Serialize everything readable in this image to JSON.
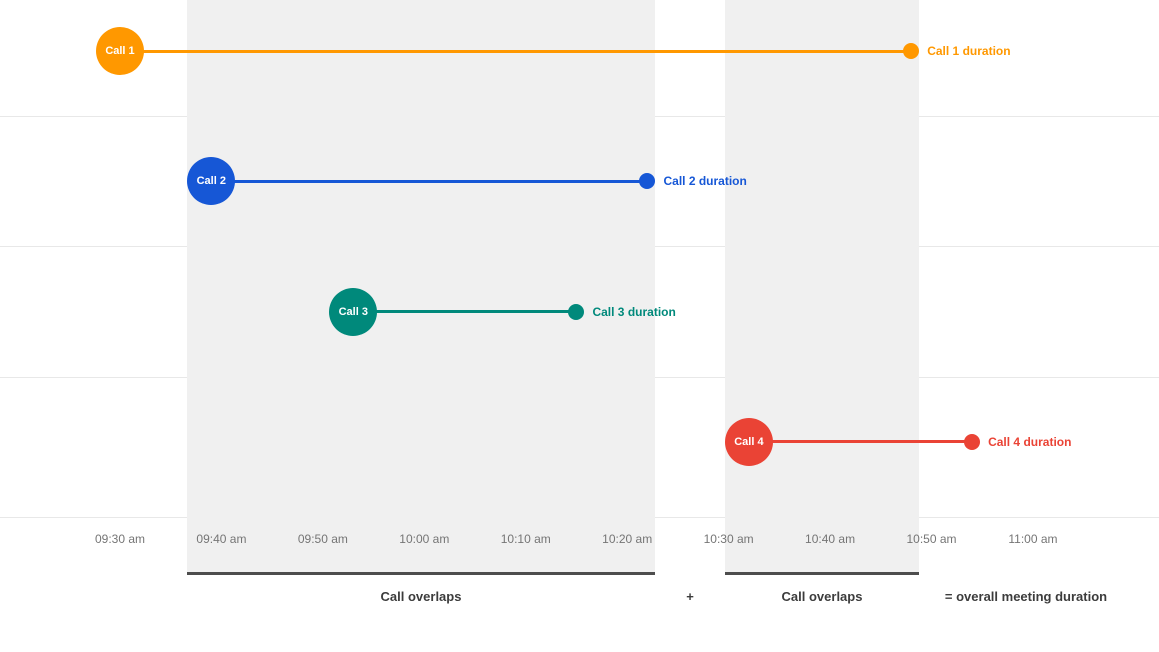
{
  "chart_data": {
    "type": "timeline",
    "title": "",
    "x_ticks": [
      "09:30 am",
      "09:40 am",
      "09:50 am",
      "10:00 am",
      "10:10 am",
      "10:20 am",
      "10:30 am",
      "10:40 am",
      "10:50 am",
      "11:00 am"
    ],
    "calls": [
      {
        "label": "Call 1",
        "start": "09:30 am",
        "end": "10:48 am",
        "duration_label": "Call 1 duration",
        "color": "#FF9800"
      },
      {
        "label": "Call 2",
        "start": "09:39 am",
        "end": "10:22 am",
        "duration_label": "Call 2 duration",
        "color": "#1657D6"
      },
      {
        "label": "Call 3",
        "start": "09:53 am",
        "end": "10:15 am",
        "duration_label": "Call 3 duration",
        "color": "#00897B"
      },
      {
        "label": "Call 4",
        "start": "10:32 am",
        "end": "10:54 am",
        "duration_label": "Call 4 duration",
        "color": "#EA4335"
      }
    ],
    "overlap_bands": [
      {
        "start": "09:39 am",
        "end": "10:22 am"
      },
      {
        "start": "10:32 am",
        "end": "10:48 am"
      }
    ],
    "footer": {
      "band1_label": "Call overlaps",
      "plus": "+",
      "band2_label": "Call overlaps",
      "equals_label": "= overall meeting duration"
    },
    "colors": {
      "band": "#F0F0F0",
      "gridline": "#E8E8E8",
      "underline": "#4D4D4D",
      "tick_text": "#757575",
      "footer_text": "#3C3C3C"
    }
  }
}
